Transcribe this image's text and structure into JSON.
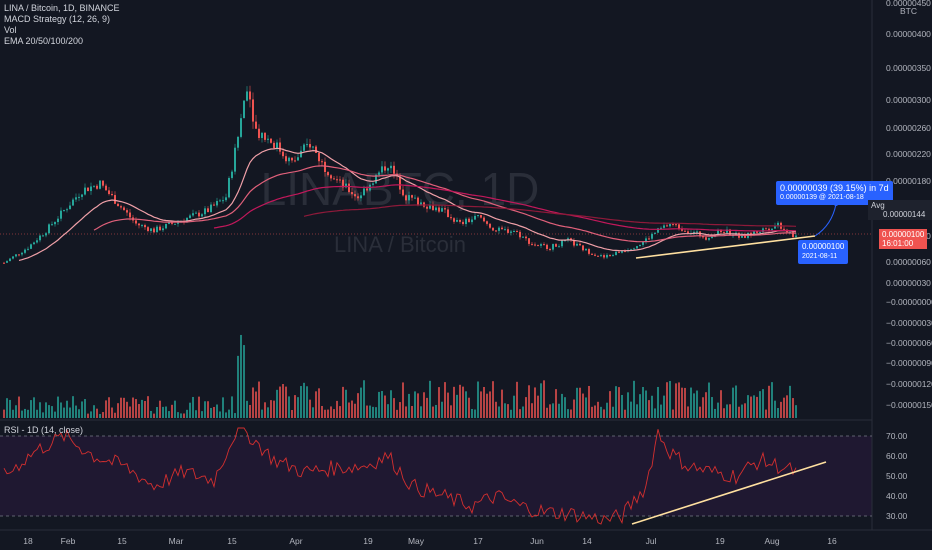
{
  "header": {
    "symbol_line": "LINA / Bitcoin, 1D, BINANCE",
    "indicators": [
      "MACD Strategy (12, 26, 9)",
      "Vol",
      "EMA 20/50/100/200"
    ],
    "rsi_label": "RSI - 1D (14, close)",
    "watermark_big": "LINABTC, 1D",
    "watermark_small": "LINA / Bitcoin"
  },
  "price_axis": {
    "unit_top": "0.00000450",
    "unit_label": "BTC",
    "ticks": [
      "0.00000400",
      "0.00000350",
      "0.00000300",
      "0.00000260",
      "0.00000220",
      "0.00000180",
      "0.00000144",
      "0.00000100",
      "0.00000060",
      "0.00000030",
      "−0.00000000",
      "−0.00000030",
      "−0.00000060",
      "−0.00000090",
      "−0.00000120",
      "−0.00000150"
    ],
    "avg_label": "Avg",
    "avg_value": "0.00000144",
    "last_value": "0.00000100",
    "countdown": "16:01:00"
  },
  "rsi_axis": {
    "ticks": [
      "70.00",
      "60.00",
      "50.00",
      "40.00",
      "30.00"
    ],
    "upper": 70,
    "lower": 30
  },
  "time_axis": {
    "ticks": [
      "18",
      "Feb",
      "15",
      "Mar",
      "15",
      "Apr",
      "19",
      "May",
      "17",
      "Jun",
      "14",
      "Jul",
      "19",
      "Aug",
      "16"
    ]
  },
  "projection": {
    "headline": "0.00000039 (39.15%) in 7d",
    "detail": "0.00000139 @ 2021-08-18",
    "base_value": "0.00000100",
    "base_date": "2021-08-11"
  },
  "colors": {
    "background": "#131722",
    "up": "#26a69a",
    "down": "#ef5350",
    "ema20": "#f0a0a8",
    "ema50": "#e0607a",
    "ema100": "#c2185b",
    "ema200": "#8e1a3a",
    "trendline": "#ffe0a0",
    "rsi": "#d32f2f",
    "rsi_band": "#7b1fa2",
    "projection": "#2962ff"
  },
  "chart_data": {
    "type": "candlestick",
    "title": "LINA / Bitcoin, 1D, BINANCE",
    "ylim": [
      -1.6e-06,
      4.5e-06
    ],
    "price_anchors": [
      [
        0,
        6.2e-07
      ],
      [
        8,
        8.5e-07
      ],
      [
        14,
        1.1e-06
      ],
      [
        20,
        1.4e-06
      ],
      [
        26,
        1.7e-06
      ],
      [
        32,
        1.8e-06
      ],
      [
        38,
        1.5e-06
      ],
      [
        44,
        1.2e-06
      ],
      [
        50,
        1.1e-06
      ],
      [
        56,
        1.2e-06
      ],
      [
        62,
        1.3e-06
      ],
      [
        68,
        1.4e-06
      ],
      [
        74,
        1.6e-06
      ],
      [
        78,
        2.5e-06
      ],
      [
        81,
        3.3e-06
      ],
      [
        84,
        2.6e-06
      ],
      [
        90,
        2.4e-06
      ],
      [
        96,
        2.1e-06
      ],
      [
        102,
        2.4e-06
      ],
      [
        106,
        2.1e-06
      ],
      [
        112,
        1.8e-06
      ],
      [
        118,
        1.6e-06
      ],
      [
        124,
        1.9e-06
      ],
      [
        128,
        2.1e-06
      ],
      [
        134,
        1.6e-06
      ],
      [
        140,
        1.5e-06
      ],
      [
        146,
        1.4e-06
      ],
      [
        152,
        1.2e-06
      ],
      [
        158,
        1.3e-06
      ],
      [
        164,
        1.1e-06
      ],
      [
        170,
        1.1e-06
      ],
      [
        176,
        9e-07
      ],
      [
        182,
        8.5e-07
      ],
      [
        188,
        9.5e-07
      ],
      [
        194,
        8e-07
      ],
      [
        200,
        7e-07
      ],
      [
        206,
        8e-07
      ],
      [
        212,
        9e-07
      ],
      [
        218,
        1.1e-06
      ],
      [
        222,
        1.2e-06
      ],
      [
        228,
        1.1e-06
      ],
      [
        234,
        1e-06
      ],
      [
        240,
        1.1e-06
      ],
      [
        246,
        1e-06
      ],
      [
        252,
        1.1e-06
      ],
      [
        258,
        1.2e-06
      ],
      [
        264,
        1e-06
      ]
    ],
    "rsi_anchors": [
      [
        0,
        50
      ],
      [
        10,
        62
      ],
      [
        20,
        70
      ],
      [
        30,
        60
      ],
      [
        40,
        55
      ],
      [
        50,
        45
      ],
      [
        60,
        52
      ],
      [
        70,
        48
      ],
      [
        78,
        75
      ],
      [
        82,
        70
      ],
      [
        90,
        58
      ],
      [
        100,
        52
      ],
      [
        110,
        54
      ],
      [
        120,
        55
      ],
      [
        128,
        60
      ],
      [
        136,
        45
      ],
      [
        146,
        40
      ],
      [
        156,
        35
      ],
      [
        164,
        40
      ],
      [
        172,
        35
      ],
      [
        180,
        32
      ],
      [
        190,
        31
      ],
      [
        200,
        28
      ],
      [
        206,
        30
      ],
      [
        214,
        45
      ],
      [
        218,
        72
      ],
      [
        222,
        62
      ],
      [
        228,
        55
      ],
      [
        236,
        52
      ],
      [
        244,
        50
      ],
      [
        252,
        58
      ],
      [
        258,
        55
      ],
      [
        264,
        52
      ]
    ]
  }
}
